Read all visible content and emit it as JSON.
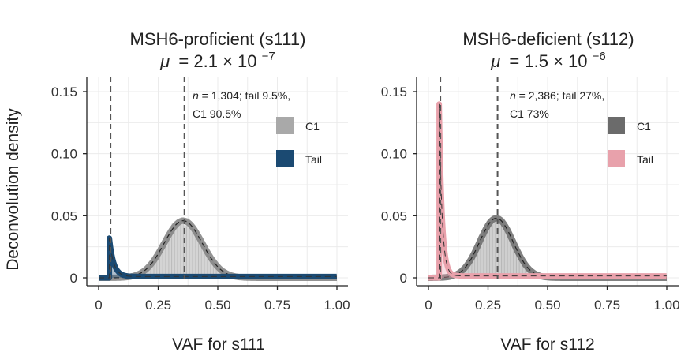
{
  "figure": {
    "ylabel": "Deconvolution density"
  },
  "chart_data": [
    {
      "type": "area",
      "title": "MSH6-proficient (s111)",
      "subtitle": {
        "mu_symbol": "μ",
        "eq": "= 2.1 × 10",
        "exp": "−7"
      },
      "xlabel": "VAF for s111",
      "ylabel": "Deconvolution density",
      "xlim": [
        0,
        1
      ],
      "ylim": [
        -0.005,
        0.16
      ],
      "xticks": [
        "0",
        "0.25",
        "0.50",
        "0.75",
        "1.00"
      ],
      "xtick_values": [
        0,
        0.25,
        0.5,
        0.75,
        1.0
      ],
      "yticks": [
        "0",
        "0.05",
        "0.10",
        "0.15"
      ],
      "ytick_values": [
        0,
        0.05,
        0.1,
        0.15
      ],
      "grid": true,
      "annotation": {
        "n_italic": "n",
        "line1_rest": " = 1,304; tail 9.5%,",
        "line2": "C1 90.5%"
      },
      "vlines": [
        0.05,
        0.36
      ],
      "legend": [
        {
          "label": "C1",
          "color": "#a9a9a9"
        },
        {
          "label": "Tail",
          "color": "#1b4a72"
        }
      ],
      "series": [
        {
          "name": "C1",
          "kind": "gaussian",
          "mean": 0.355,
          "sd": 0.08,
          "peak": 0.046,
          "color": "#808080"
        },
        {
          "name": "Tail",
          "kind": "tail",
          "start": 0.045,
          "peak": 0.032,
          "decay": 0.018,
          "floor": 0.001,
          "color": "#1b4a72"
        }
      ]
    },
    {
      "type": "area",
      "title": "MSH6-deficient (s112)",
      "subtitle": {
        "mu_symbol": "μ",
        "eq": "= 1.5 × 10",
        "exp": "−6"
      },
      "xlabel": "VAF  for s112",
      "ylabel": "Deconvolution density",
      "xlim": [
        0,
        1
      ],
      "ylim": [
        -0.005,
        0.16
      ],
      "xticks": [
        "0",
        "0.25",
        "0.50",
        "0.75",
        "1.00"
      ],
      "xtick_values": [
        0,
        0.25,
        0.5,
        0.75,
        1.0
      ],
      "yticks": [
        "0",
        "0.05",
        "0.10",
        "0.15"
      ],
      "ytick_values": [
        0,
        0.05,
        0.1,
        0.15
      ],
      "grid": true,
      "annotation": {
        "n_italic": "n",
        "line1_rest": " = 2,386; tail 27%,",
        "line2": "C1 73%"
      },
      "vlines": [
        0.05,
        0.29
      ],
      "legend": [
        {
          "label": "C1",
          "color": "#6b6b6b"
        },
        {
          "label": "Tail",
          "color": "#e8a1ab"
        }
      ],
      "series": [
        {
          "name": "C1",
          "kind": "gaussian",
          "mean": 0.285,
          "sd": 0.07,
          "peak": 0.048,
          "color": "#6b6b6b"
        },
        {
          "name": "Tail",
          "kind": "tail",
          "start": 0.045,
          "peak": 0.14,
          "decay": 0.012,
          "floor": 0.0015,
          "color": "#e8a1ab"
        }
      ]
    }
  ]
}
